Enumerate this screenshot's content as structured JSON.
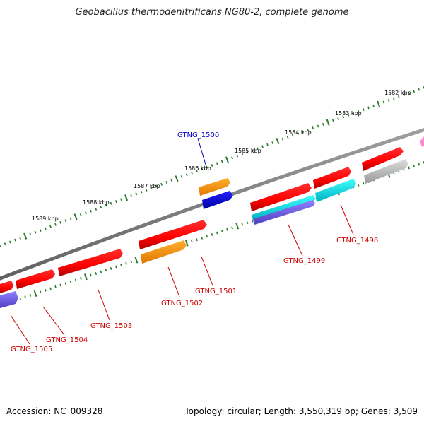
{
  "title": "Geobacillus thermodenitrificans NG80-2, complete genome",
  "footer": {
    "accession": "Accession: NC_009328",
    "stats": "Topology: circular; Length: 3,550,319 bp; Genes: 3,509"
  },
  "kbp_ticks": [
    "1582 kbp",
    "1583 kbp",
    "1584 kbp",
    "1585 kbp",
    "1586 kbp",
    "1587 kbp",
    "1588 kbp",
    "1589 kbp"
  ],
  "genes": [
    {
      "label": "GTNG_1498",
      "color": "#cc0000"
    },
    {
      "label": "GTNG_1499",
      "color": "#cc0000"
    },
    {
      "label": "GTNG_1500",
      "color": "#0000cc"
    },
    {
      "label": "GTNG_1501",
      "color": "#cc0000"
    },
    {
      "label": "GTNG_1502",
      "color": "#cc0000"
    },
    {
      "label": "GTNG_1503",
      "color": "#cc0000"
    },
    {
      "label": "GTNG_1504",
      "color": "#cc0000"
    },
    {
      "label": "GTNG_1505",
      "color": "#cc0000"
    }
  ],
  "colors": {
    "backbone": "#888888",
    "tick": "#2a7a2a",
    "forward_gene": "#ff0000",
    "orange_feature": "#ff9900",
    "blue_feature": "#0000ee",
    "cyan_feature": "#00e5ee",
    "grey_feature": "#bbbbbb",
    "purple_feature": "#7b68ee",
    "pink_feature": "#ff88cc"
  }
}
